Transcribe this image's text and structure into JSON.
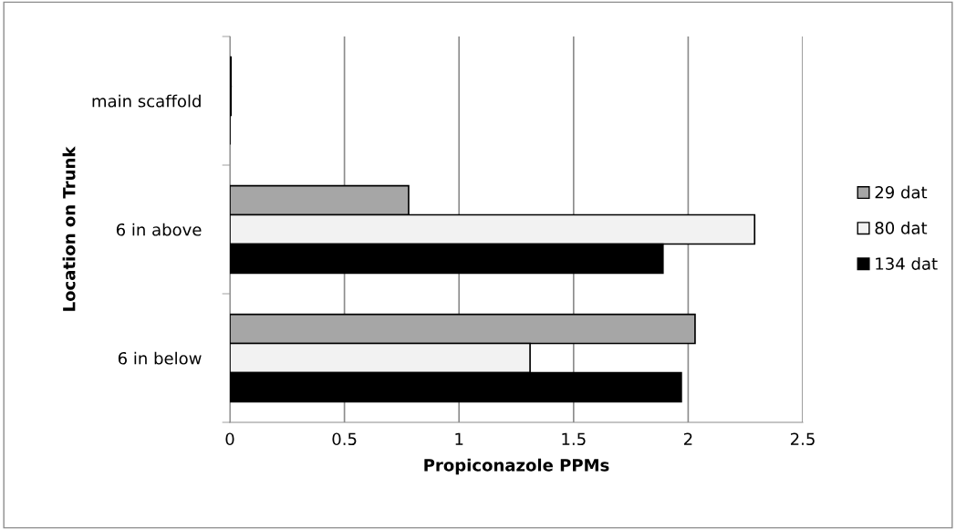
{
  "chart_data": {
    "type": "bar",
    "orientation": "horizontal",
    "xlabel": "Propiconazole PPMs",
    "ylabel": "Location on Trunk",
    "categories": [
      "main scaffold",
      "6 in above",
      "6 in below"
    ],
    "series": [
      {
        "name": "29 dat",
        "color": "#a6a6a6",
        "values": [
          0.005,
          0.78,
          2.03
        ]
      },
      {
        "name": "80 dat",
        "color": "#f2f2f2",
        "values": [
          0.005,
          2.29,
          1.31
        ]
      },
      {
        "name": "134 dat",
        "color": "#000000",
        "values": [
          0,
          1.89,
          1.97
        ]
      }
    ],
    "xlim": [
      0,
      2.5
    ],
    "xticks": [
      0,
      0.5,
      1,
      1.5,
      2,
      2.5
    ],
    "grid": "x",
    "legend": "right"
  }
}
